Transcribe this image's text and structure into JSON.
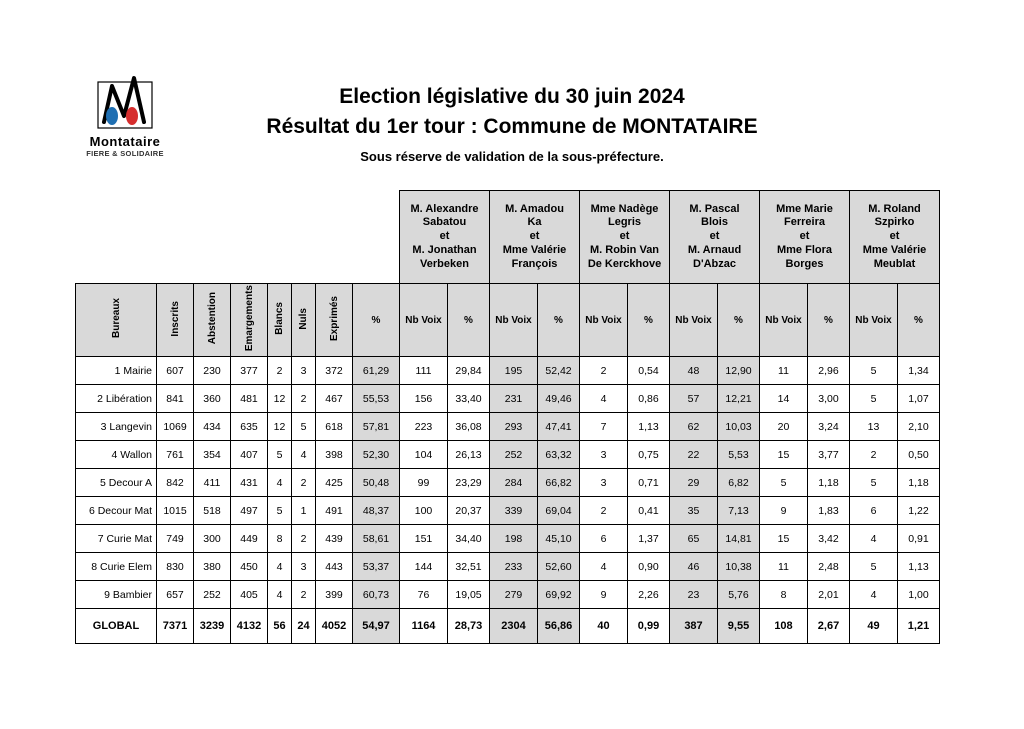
{
  "logo": {
    "name": "Montataire",
    "tagline": "FIERE & SOLIDAIRE"
  },
  "header": {
    "title1": "Election législative du 30 juin 2024",
    "title2": "Résultat du 1er tour : Commune de MONTATAIRE",
    "subtitle": "Sous réserve de validation de la sous-préfecture."
  },
  "columns_left": [
    "Bureaux",
    "Inscrits",
    "Abstention",
    "Emargements",
    "Blancs",
    "Nuls",
    "Exprimés",
    "%"
  ],
  "subcols": [
    "Nb Voix",
    "%"
  ],
  "candidates": [
    {
      "line1": "M. Alexandre",
      "line2": "Sabatou",
      "line3": "et",
      "line4": "M. Jonathan",
      "line5": "Verbeken"
    },
    {
      "line1": "M. Amadou",
      "line2": "Ka",
      "line3": "et",
      "line4": "Mme Valérie",
      "line5": "François"
    },
    {
      "line1": "Mme Nadège",
      "line2": "Legris",
      "line3": "et",
      "line4": "M. Robin Van",
      "line5": "De Kerckhove"
    },
    {
      "line1": "M. Pascal",
      "line2": "Blois",
      "line3": "et",
      "line4": "M. Arnaud",
      "line5": "D'Abzac"
    },
    {
      "line1": "Mme Marie",
      "line2": "Ferreira",
      "line3": "et",
      "line4": "Mme Flora",
      "line5": "Borges"
    },
    {
      "line1": "M. Roland",
      "line2": "Szpirko",
      "line3": "et",
      "line4": "Mme Valérie",
      "line5": "Meublat"
    }
  ],
  "highlight_candidates": [
    1,
    3
  ],
  "rows": [
    {
      "name": "1 Mairie",
      "inscrits": "607",
      "abst": "230",
      "emarg": "377",
      "blancs": "2",
      "nuls": "3",
      "expr": "372",
      "pct": "61,29",
      "v": [
        [
          "111",
          "29,84"
        ],
        [
          "195",
          "52,42"
        ],
        [
          "2",
          "0,54"
        ],
        [
          "48",
          "12,90"
        ],
        [
          "11",
          "2,96"
        ],
        [
          "5",
          "1,34"
        ]
      ]
    },
    {
      "name": "2 Libération",
      "inscrits": "841",
      "abst": "360",
      "emarg": "481",
      "blancs": "12",
      "nuls": "2",
      "expr": "467",
      "pct": "55,53",
      "v": [
        [
          "156",
          "33,40"
        ],
        [
          "231",
          "49,46"
        ],
        [
          "4",
          "0,86"
        ],
        [
          "57",
          "12,21"
        ],
        [
          "14",
          "3,00"
        ],
        [
          "5",
          "1,07"
        ]
      ]
    },
    {
      "name": "3 Langevin",
      "inscrits": "1069",
      "abst": "434",
      "emarg": "635",
      "blancs": "12",
      "nuls": "5",
      "expr": "618",
      "pct": "57,81",
      "v": [
        [
          "223",
          "36,08"
        ],
        [
          "293",
          "47,41"
        ],
        [
          "7",
          "1,13"
        ],
        [
          "62",
          "10,03"
        ],
        [
          "20",
          "3,24"
        ],
        [
          "13",
          "2,10"
        ]
      ]
    },
    {
      "name": "4 Wallon",
      "inscrits": "761",
      "abst": "354",
      "emarg": "407",
      "blancs": "5",
      "nuls": "4",
      "expr": "398",
      "pct": "52,30",
      "v": [
        [
          "104",
          "26,13"
        ],
        [
          "252",
          "63,32"
        ],
        [
          "3",
          "0,75"
        ],
        [
          "22",
          "5,53"
        ],
        [
          "15",
          "3,77"
        ],
        [
          "2",
          "0,50"
        ]
      ]
    },
    {
      "name": "5 Decour A",
      "inscrits": "842",
      "abst": "411",
      "emarg": "431",
      "blancs": "4",
      "nuls": "2",
      "expr": "425",
      "pct": "50,48",
      "v": [
        [
          "99",
          "23,29"
        ],
        [
          "284",
          "66,82"
        ],
        [
          "3",
          "0,71"
        ],
        [
          "29",
          "6,82"
        ],
        [
          "5",
          "1,18"
        ],
        [
          "5",
          "1,18"
        ]
      ]
    },
    {
      "name": "6 Decour Mat",
      "inscrits": "1015",
      "abst": "518",
      "emarg": "497",
      "blancs": "5",
      "nuls": "1",
      "expr": "491",
      "pct": "48,37",
      "v": [
        [
          "100",
          "20,37"
        ],
        [
          "339",
          "69,04"
        ],
        [
          "2",
          "0,41"
        ],
        [
          "35",
          "7,13"
        ],
        [
          "9",
          "1,83"
        ],
        [
          "6",
          "1,22"
        ]
      ]
    },
    {
      "name": "7 Curie Mat",
      "inscrits": "749",
      "abst": "300",
      "emarg": "449",
      "blancs": "8",
      "nuls": "2",
      "expr": "439",
      "pct": "58,61",
      "v": [
        [
          "151",
          "34,40"
        ],
        [
          "198",
          "45,10"
        ],
        [
          "6",
          "1,37"
        ],
        [
          "65",
          "14,81"
        ],
        [
          "15",
          "3,42"
        ],
        [
          "4",
          "0,91"
        ]
      ]
    },
    {
      "name": "8 Curie Elem",
      "inscrits": "830",
      "abst": "380",
      "emarg": "450",
      "blancs": "4",
      "nuls": "3",
      "expr": "443",
      "pct": "53,37",
      "v": [
        [
          "144",
          "32,51"
        ],
        [
          "233",
          "52,60"
        ],
        [
          "4",
          "0,90"
        ],
        [
          "46",
          "10,38"
        ],
        [
          "11",
          "2,48"
        ],
        [
          "5",
          "1,13"
        ]
      ]
    },
    {
      "name": "9 Bambier",
      "inscrits": "657",
      "abst": "252",
      "emarg": "405",
      "blancs": "4",
      "nuls": "2",
      "expr": "399",
      "pct": "60,73",
      "v": [
        [
          "76",
          "19,05"
        ],
        [
          "279",
          "69,92"
        ],
        [
          "9",
          "2,26"
        ],
        [
          "23",
          "5,76"
        ],
        [
          "8",
          "2,01"
        ],
        [
          "4",
          "1,00"
        ]
      ]
    }
  ],
  "global": {
    "label": "GLOBAL",
    "inscrits": "7371",
    "abst": "3239",
    "emarg": "4132",
    "blancs": "56",
    "nuls": "24",
    "expr": "4052",
    "pct": "54,97",
    "v": [
      [
        "1164",
        "28,73"
      ],
      [
        "2304",
        "56,86"
      ],
      [
        "40",
        "0,99"
      ],
      [
        "387",
        "9,55"
      ],
      [
        "108",
        "2,67"
      ],
      [
        "49",
        "1,21"
      ]
    ]
  },
  "style": {
    "shade_color": "#d9d9d9",
    "border_color": "#000000",
    "background": "#ffffff",
    "font": "Arial",
    "title_fontsize": 21,
    "subtitle_fontsize": 13,
    "cell_fontsize": 10.5,
    "header_fontsize": 10
  }
}
